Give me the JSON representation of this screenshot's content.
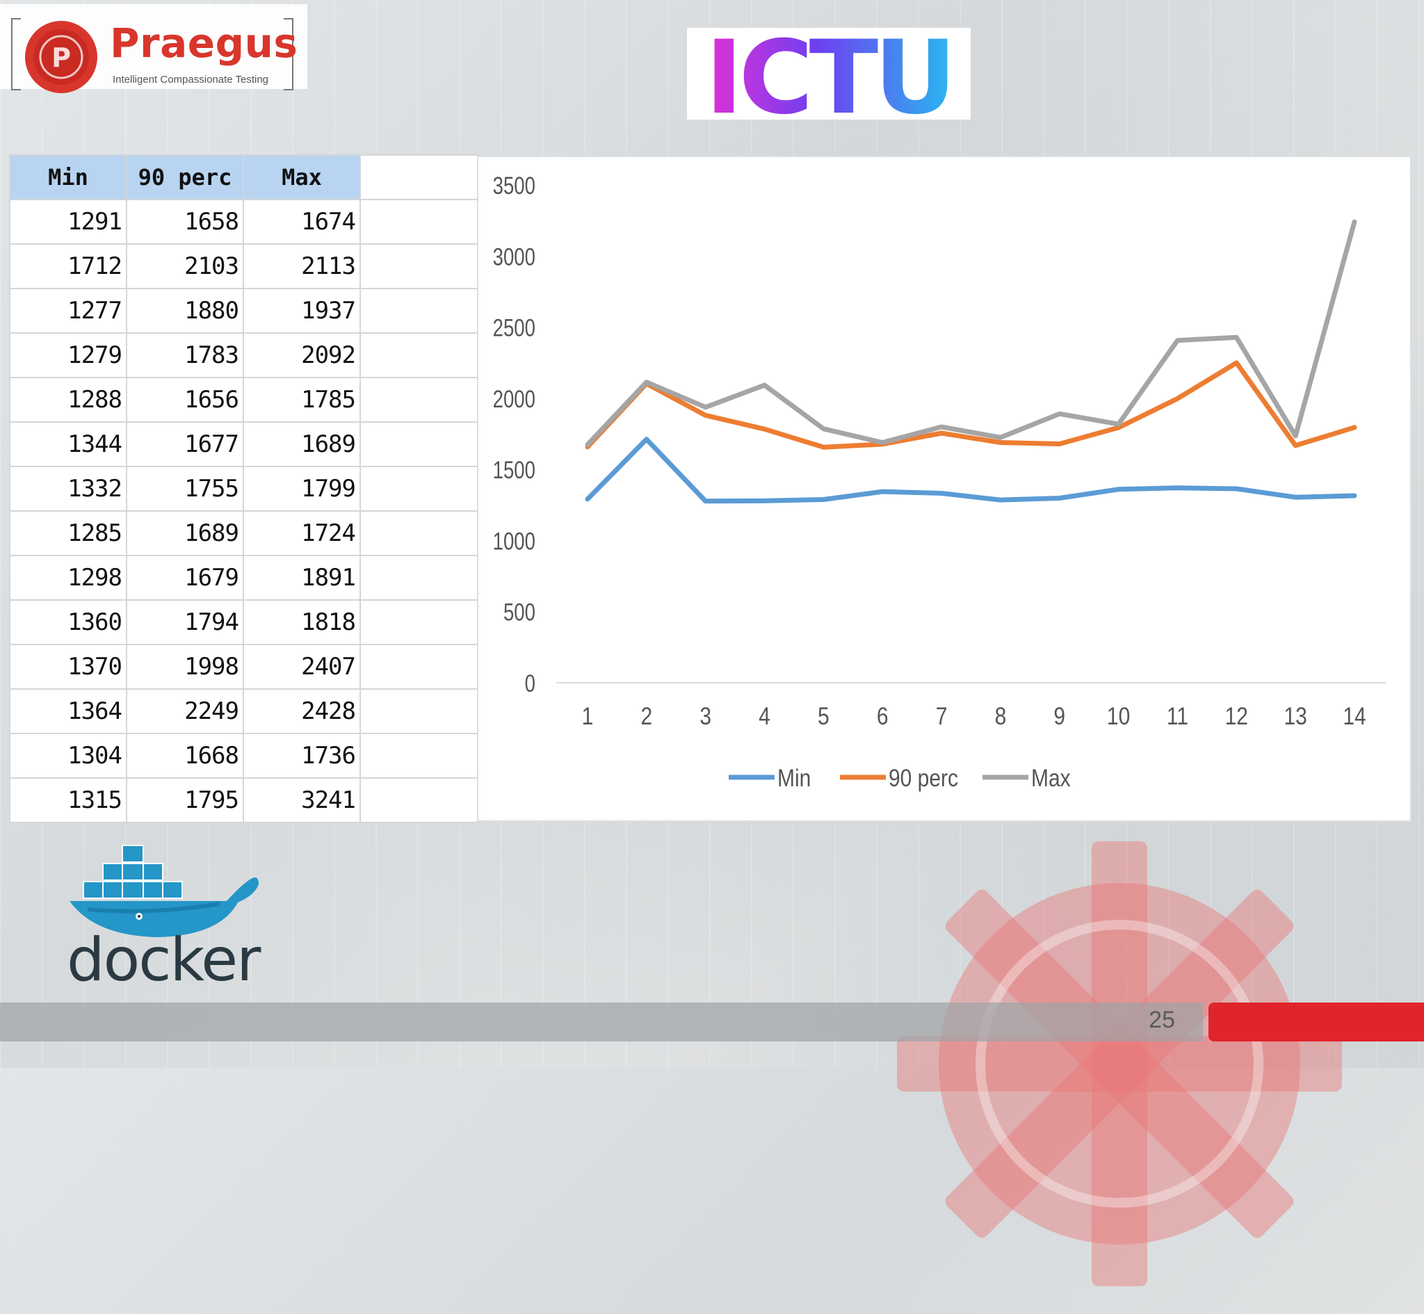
{
  "logos": {
    "praegus": {
      "name": "Praegus",
      "seal_letter": "P",
      "tagline": "Intelligent Compassionate Testing"
    },
    "ictu": {
      "text": "ICTU"
    },
    "docker": {
      "text": "docker"
    }
  },
  "table": {
    "headers": [
      "Min",
      "90 perc",
      "Max"
    ],
    "rows": [
      [
        "1291",
        "1658",
        "1674"
      ],
      [
        "1712",
        "2103",
        "2113"
      ],
      [
        "1277",
        "1880",
        "1937"
      ],
      [
        "1279",
        "1783",
        "2092"
      ],
      [
        "1288",
        "1656",
        "1785"
      ],
      [
        "1344",
        "1677",
        "1689"
      ],
      [
        "1332",
        "1755",
        "1799"
      ],
      [
        "1285",
        "1689",
        "1724"
      ],
      [
        "1298",
        "1679",
        "1891"
      ],
      [
        "1360",
        "1794",
        "1818"
      ],
      [
        "1370",
        "1998",
        "2407"
      ],
      [
        "1364",
        "2249",
        "2428"
      ],
      [
        "1304",
        "1668",
        "1736"
      ],
      [
        "1315",
        "1795",
        "3241"
      ]
    ]
  },
  "chart_data": {
    "type": "line",
    "x": [
      1,
      2,
      3,
      4,
      5,
      6,
      7,
      8,
      9,
      10,
      11,
      12,
      13,
      14
    ],
    "yticks": [
      0,
      500,
      1000,
      1500,
      2000,
      2500,
      3000,
      3500
    ],
    "ylim": [
      0,
      3500
    ],
    "grid": false,
    "legend_position": "bottom",
    "series": [
      {
        "name": "Min",
        "color": "#5b9bd5",
        "values": [
          1291,
          1712,
          1277,
          1279,
          1288,
          1344,
          1332,
          1285,
          1298,
          1360,
          1370,
          1364,
          1304,
          1315
        ]
      },
      {
        "name": "90 perc",
        "color": "#ed7d31",
        "values": [
          1658,
          2103,
          1880,
          1783,
          1656,
          1677,
          1755,
          1689,
          1679,
          1794,
          1998,
          2249,
          1668,
          1795
        ]
      },
      {
        "name": "Max",
        "color": "#a5a5a5",
        "values": [
          1674,
          2113,
          1937,
          2092,
          1785,
          1689,
          1799,
          1724,
          1891,
          1818,
          2407,
          2428,
          1736,
          3241
        ]
      }
    ]
  },
  "footer": {
    "page_number": "25",
    "accent_color": "#e0242b"
  }
}
